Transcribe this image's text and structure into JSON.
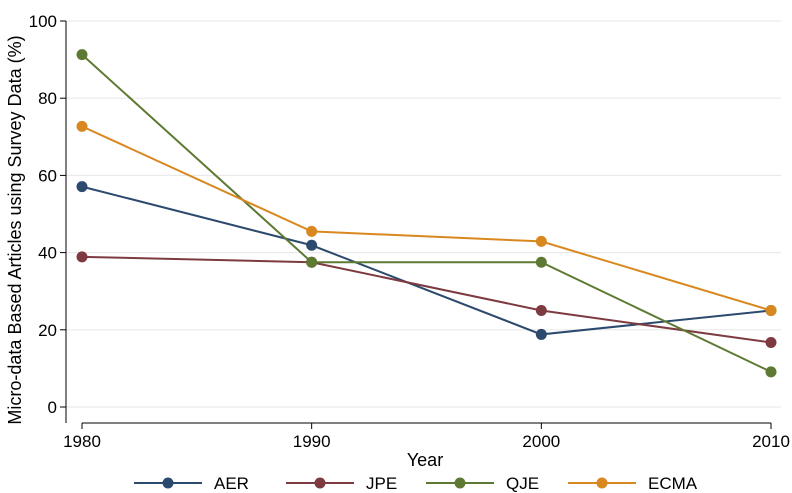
{
  "chart_data": {
    "type": "line",
    "title": "",
    "xlabel": "Year",
    "ylabel": "Micro-data Based Articles using Survey Data (%)",
    "x": [
      1980,
      1990,
      2000,
      2010
    ],
    "x_ticks": [
      "1980",
      "1990",
      "2000",
      "2010"
    ],
    "y_ticks": [
      "0",
      "20",
      "40",
      "60",
      "80",
      "100"
    ],
    "xlim": [
      1980,
      2010
    ],
    "ylim": [
      0,
      100
    ],
    "grid": true,
    "legend_position": "bottom",
    "series": [
      {
        "name": "AER",
        "color": "#2c4a6e",
        "values": [
          57.1,
          41.9,
          18.8,
          25.0
        ]
      },
      {
        "name": "JPE",
        "color": "#7d3a41",
        "values": [
          38.9,
          37.5,
          25.0,
          16.7
        ]
      },
      {
        "name": "QJE",
        "color": "#5e7a32",
        "values": [
          91.3,
          37.5,
          37.5,
          9.1
        ]
      },
      {
        "name": "ECMA",
        "color": "#d9881f",
        "values": [
          72.7,
          45.5,
          42.9,
          25.0
        ]
      }
    ]
  }
}
